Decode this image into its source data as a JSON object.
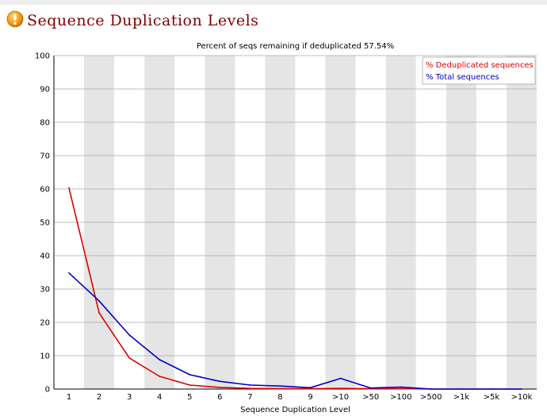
{
  "header": {
    "title": "Sequence Duplication Levels",
    "icon": "warning-icon",
    "icon_color": "#f5a21a"
  },
  "chart_data": {
    "type": "line",
    "title": "Percent of seqs remaining if deduplicated 57.54%",
    "xlabel": "Sequence Duplication Level",
    "ylabel": "",
    "ylim": [
      0,
      100
    ],
    "yticks": [
      0,
      10,
      20,
      30,
      40,
      50,
      60,
      70,
      80,
      90,
      100
    ],
    "grid": true,
    "legend_position": "top-right",
    "categories": [
      "1",
      "2",
      "3",
      "4",
      "5",
      "6",
      "7",
      "8",
      "9",
      ">10",
      ">50",
      ">100",
      ">500",
      ">1k",
      ">5k",
      ">10k"
    ],
    "series": [
      {
        "name": "% Deduplicated sequences",
        "color": "#e00000",
        "values": [
          60.3,
          22.8,
          9.3,
          3.8,
          1.2,
          0.5,
          0.2,
          0.1,
          0.1,
          0.2,
          0.1,
          0.1,
          0.0,
          0.0,
          0.0,
          0.0
        ]
      },
      {
        "name": "% Total sequences",
        "color": "#0000cc",
        "values": [
          34.8,
          26.4,
          16.2,
          8.8,
          4.3,
          2.3,
          1.2,
          0.9,
          0.4,
          3.2,
          0.3,
          0.6,
          0.0,
          0.0,
          0.0,
          0.0
        ]
      }
    ],
    "band_color": "#e5e5e5",
    "grid_color": "#aaaaaa"
  }
}
